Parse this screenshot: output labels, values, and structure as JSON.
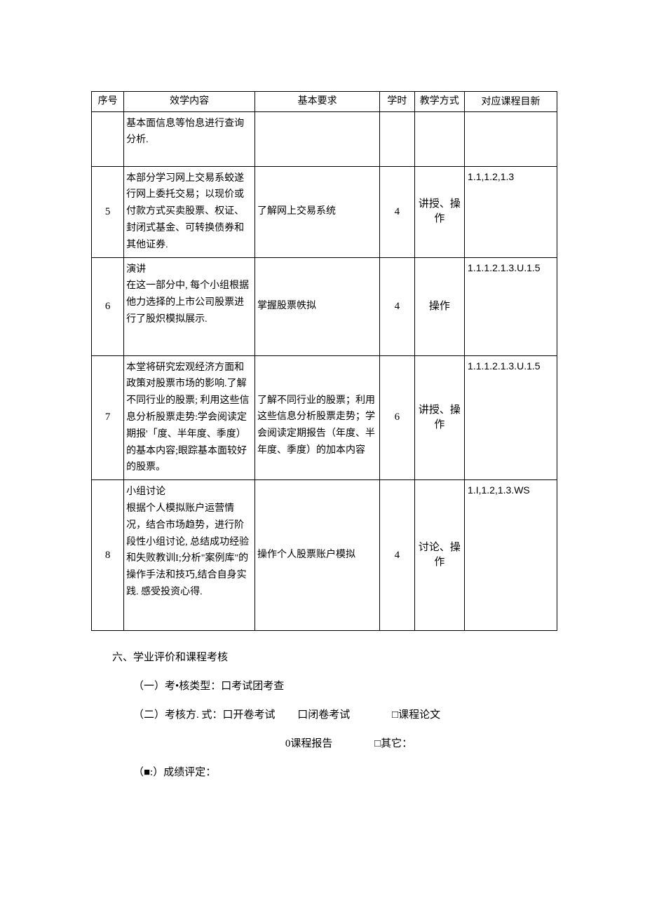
{
  "table": {
    "headers": {
      "seq": "序号",
      "content": "效学内容",
      "req": "基本要求",
      "hours": "学时",
      "method": "教学方式",
      "goal": "对应课程目新"
    },
    "rows": [
      {
        "seq": "",
        "content": "基本面信息等怡息进行查询分析.",
        "req": "",
        "hours": "",
        "method": "",
        "goal": ""
      },
      {
        "seq": "5",
        "content": "本部分学习网上交易系蛟遂行网上委托交易；以现价或付款方式买卖股票、权证、封闭式基金、可转换债券和其他证券.",
        "req": "了解网上交易系统",
        "hours": "4",
        "method": "讲授、操作",
        "goal": "1.1,1.2,1.3"
      },
      {
        "seq": "6",
        "content": "演讲\n在这一部分中, 每个小组根据他力选择的上市公司股票进行了股炽模拟展示.",
        "req": "掌握股票帙拟",
        "hours": "4",
        "method": "操作",
        "goal": "1.1.1.2.1.3.U.1.5"
      },
      {
        "seq": "7",
        "content": "本堂将研究宏观经济方面和政策对股票市场的影响.了解不同行业的股票; 利用这些信息分析股票走势:学会阅读定期报'「度、半年度、季度）\n的基本内容;眼踪基本面较好的股票。",
        "req": "了解不同行业的股票；利用这些信息分析股票走势；学会阅读定期报告（年度、半年度、季度）的加本内容",
        "hours": "6",
        "method": "讲授、操作",
        "goal": "1.1.1.2.1.3.U.1.5"
      },
      {
        "seq": "8",
        "content": "小组讨论\n根据个人模拟账户运营情况，结合市场趋势，进行阶段性小组讨论, 总结成功经验和失败教训I;分析\"案例库\"的操作手法和技巧,结合自身实践. 感受投资心得.",
        "req": "操作个人股票账户模拟",
        "hours": "4",
        "method": "讨论、操作",
        "goal": "1.I,1.2,1.3.WS"
      }
    ]
  },
  "section": {
    "heading": "六、学业评价和课程考核",
    "item1": "（一）考•核类型：口考试团考查",
    "item2_left": "（二）考核方. 式：口开卷考试",
    "item2_mid": "口闭卷考试",
    "item2_right": "□课程论文",
    "item2_line2_left": "0课程报告",
    "item2_line2_right": "□其它：",
    "item3": "（■:）成绩评定："
  }
}
